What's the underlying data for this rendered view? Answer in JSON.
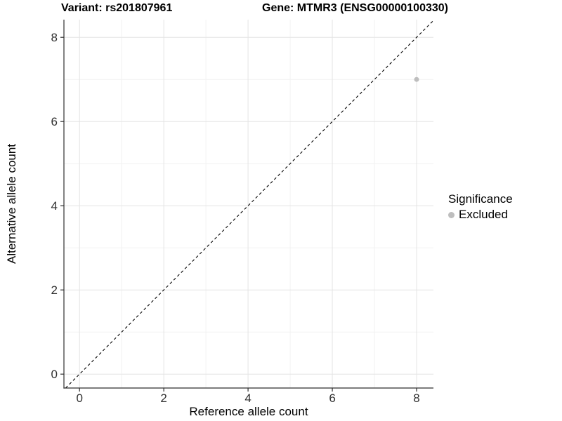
{
  "chart_data": {
    "type": "scatter",
    "titles": {
      "left": "Variant: rs201807961",
      "right": "Gene: MTMR3 (ENSG00000100330)"
    },
    "xlabel": "Reference allele count",
    "ylabel": "Alternative allele count",
    "xlim": [
      -0.37,
      8.4
    ],
    "ylim": [
      -0.33,
      8.42
    ],
    "xticks": [
      0,
      2,
      4,
      6,
      8
    ],
    "yticks": [
      0,
      2,
      4,
      6,
      8
    ],
    "minor_xticks": [
      1,
      3,
      5,
      7
    ],
    "minor_yticks": [
      1,
      3,
      5,
      7
    ],
    "grid": {
      "major_color": "#e4e4e4",
      "minor_color": "#f2f2f2",
      "background": "#ffffff"
    },
    "axis_color": "#2f2f2f",
    "tick_label_color": "#303030",
    "identity_line": {
      "equation": "y = x",
      "style": "dashed",
      "color": "#000000"
    },
    "series": [
      {
        "name": "Excluded",
        "color": "#bebebe",
        "points": [
          {
            "x": 8,
            "y": 7
          }
        ]
      }
    ],
    "legend": {
      "title": "Significance",
      "position": "right",
      "entries": [
        {
          "label": "Excluded",
          "color": "#bebebe"
        }
      ]
    }
  }
}
